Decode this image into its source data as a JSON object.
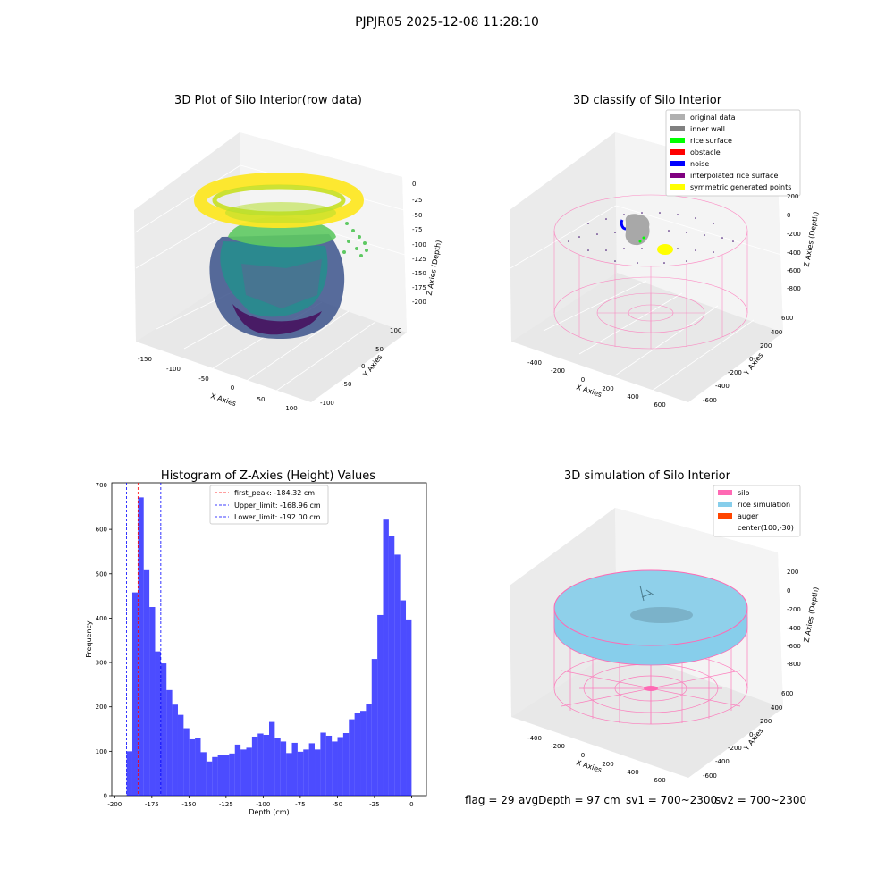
{
  "figure": {
    "suptitle": "PJPJR05 2025-12-08 11:28:10"
  },
  "status": {
    "flag": "flag = 29",
    "avg": "avgDepth = 97 cm",
    "sv1": "sv1 = 700~2300",
    "sv2": "sv2 = 700~2300"
  },
  "panel_raw": {
    "title": "3D Plot of Silo Interior(row data)",
    "xlabel": "X Axies",
    "ylabel": "Y Axies",
    "zlabel": "Z Axies (Depth)",
    "xticks": [
      "-150",
      "-100",
      "-50",
      "0",
      "50",
      "100"
    ],
    "yticks": [
      "-100",
      "-50",
      "0",
      "50",
      "100"
    ],
    "zticks": [
      "0",
      "-25",
      "-50",
      "-75",
      "-100",
      "-125",
      "-150",
      "-175",
      "-200"
    ]
  },
  "panel_classify": {
    "title": "3D classify of Silo Interior",
    "xlabel": "X Axies",
    "ylabel": "Y Axies",
    "zlabel": "Z Axies (Depth)",
    "xticks": [
      "-400",
      "-200",
      "0",
      "200",
      "400",
      "600"
    ],
    "yticks": [
      "600",
      "400",
      "200",
      "0",
      "-200",
      "-400",
      "-600"
    ],
    "zticks": [
      "200",
      "0",
      "-200",
      "-400",
      "-600",
      "-800"
    ],
    "legend": [
      {
        "label": "original data",
        "color": "#b0b0b0"
      },
      {
        "label": "inner wall",
        "color": "#808080"
      },
      {
        "label": "rice surface",
        "color": "#00ff00"
      },
      {
        "label": "obstacle",
        "color": "#ff0000"
      },
      {
        "label": "noise",
        "color": "#0000ff"
      },
      {
        "label": "interpolated rice surface",
        "color": "#800080"
      },
      {
        "label": "symmetric generated points",
        "color": "#ffff00"
      }
    ]
  },
  "panel_sim": {
    "title": "3D simulation of Silo Interior",
    "xlabel": "X Axies",
    "ylabel": "Y Axies",
    "zlabel": "Z Axies (Depth)",
    "xticks": [
      "-400",
      "-200",
      "0",
      "200",
      "400",
      "600"
    ],
    "yticks": [
      "600",
      "400",
      "200",
      "0",
      "-200",
      "-400",
      "-600"
    ],
    "zticks": [
      "200",
      "0",
      "-200",
      "-400",
      "-600",
      "-800"
    ],
    "legend": [
      {
        "label": "silo",
        "color": "#ff69b4"
      },
      {
        "label": "rice simulation",
        "color": "#87ceeb"
      },
      {
        "label": "auger",
        "color": "#ff4500"
      },
      {
        "label": "center(100,-30)",
        "color": ""
      }
    ]
  },
  "chart_data": {
    "type": "bar",
    "title": "Histogram of Z-Axies (Height) Values",
    "xlabel": "Depth (cm)",
    "ylabel": "Frequency",
    "xlim": [
      -202,
      10
    ],
    "ylim": [
      0,
      705
    ],
    "xticks": [
      -200,
      -175,
      -150,
      -125,
      -100,
      -75,
      -50,
      -25,
      0
    ],
    "yticks": [
      0,
      100,
      200,
      300,
      400,
      500,
      600,
      700
    ],
    "bar_color": "#0000ff",
    "bin_start": -192,
    "bin_width": 3.84,
    "values": [
      100,
      458,
      672,
      508,
      425,
      325,
      298,
      238,
      205,
      182,
      152,
      127,
      130,
      98,
      77,
      87,
      92,
      92,
      95,
      115,
      104,
      108,
      133,
      140,
      137,
      166,
      129,
      122,
      96,
      119,
      99,
      104,
      118,
      104,
      142,
      135,
      122,
      132,
      141,
      172,
      186,
      191,
      207,
      308,
      407,
      622,
      586,
      543,
      440,
      397
    ],
    "vlines": [
      {
        "x": -184.32,
        "color": "#ff0000",
        "label": "first_peak: -184.32 cm"
      },
      {
        "x": -168.96,
        "color": "#0000ff",
        "label": "Upper_limit: -168.96 cm"
      },
      {
        "x": -192.0,
        "color": "#0000ff",
        "label": "Lower_limit: -192.00 cm"
      }
    ],
    "legend_position": "upper center"
  }
}
